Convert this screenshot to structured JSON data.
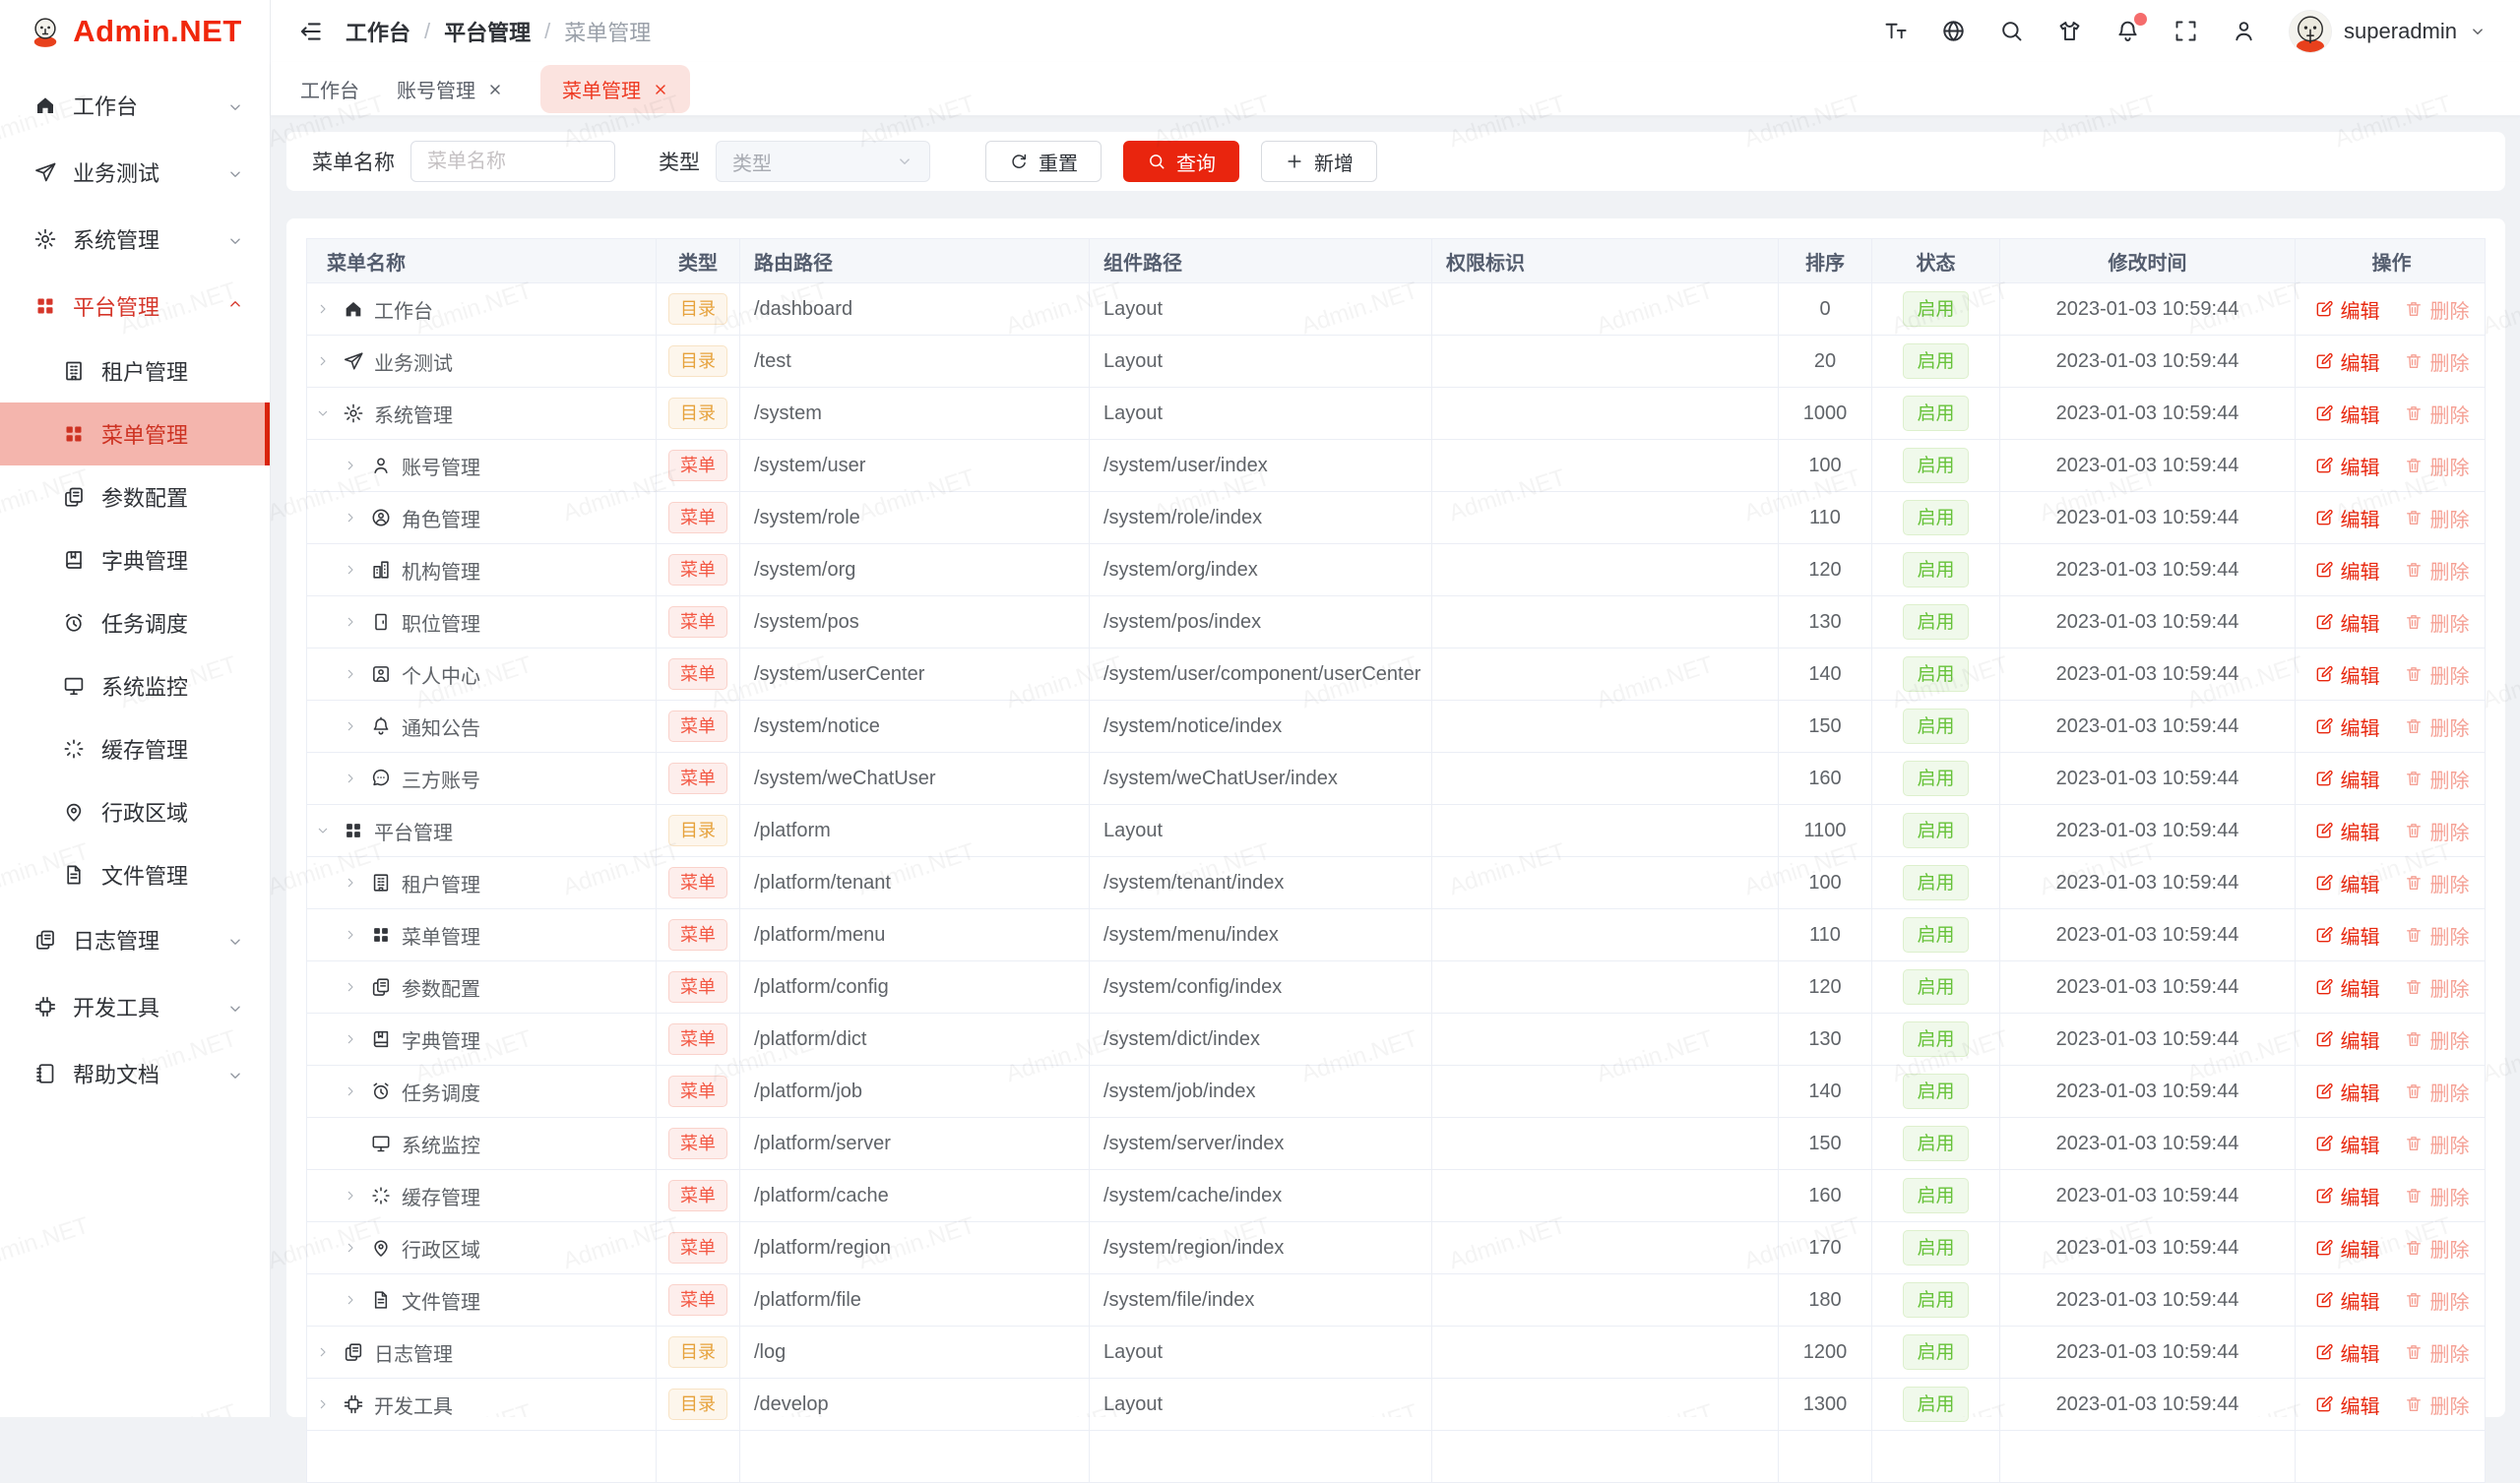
{
  "colors": {
    "primary": "#e9250e",
    "logo_red": "#f0270b",
    "sidebar_active_bg": "#f4b5ad",
    "tag_dir": "#e6a23c",
    "tag_menu": "#f35844",
    "tag_status": "#67c23a",
    "edit_link": "#e8270e",
    "delete_link": "#f5a094",
    "tab_active_bg": "#fbe3df"
  },
  "watermark": {
    "text": "Admin.NET"
  },
  "sidebar": {
    "logo_text": "Admin.NET",
    "items": [
      {
        "key": "workbench",
        "label": "工作台",
        "icon": "home",
        "chevron": "down"
      },
      {
        "key": "business-test",
        "label": "业务测试",
        "icon": "send",
        "chevron": "down"
      },
      {
        "key": "system-mgmt",
        "label": "系统管理",
        "icon": "gear",
        "chevron": "down"
      },
      {
        "key": "platform-mgmt",
        "label": "平台管理",
        "icon": "grid",
        "chevron": "up",
        "expanded": true,
        "red": true,
        "children": [
          {
            "key": "tenant-mgmt",
            "label": "租户管理",
            "icon": "building"
          },
          {
            "key": "menu-mgmt",
            "label": "菜单管理",
            "icon": "grid",
            "active": true
          },
          {
            "key": "param-config",
            "label": "参数配置",
            "icon": "copy"
          },
          {
            "key": "dict-mgmt",
            "label": "字典管理",
            "icon": "book"
          },
          {
            "key": "job-schedule",
            "label": "任务调度",
            "icon": "clock"
          },
          {
            "key": "system-monitor",
            "label": "系统监控",
            "icon": "monitor"
          },
          {
            "key": "cache-mgmt",
            "label": "缓存管理",
            "icon": "spinner"
          },
          {
            "key": "region-mgmt",
            "label": "行政区域",
            "icon": "pin"
          },
          {
            "key": "file-mgmt",
            "label": "文件管理",
            "icon": "file"
          }
        ]
      },
      {
        "key": "log-mgmt",
        "label": "日志管理",
        "icon": "log",
        "chevron": "down"
      },
      {
        "key": "dev-tools",
        "label": "开发工具",
        "icon": "chip",
        "chevron": "down"
      },
      {
        "key": "help-docs",
        "label": "帮助文档",
        "icon": "notebook",
        "chevron": "down"
      }
    ]
  },
  "topbar": {
    "breadcrumb": [
      "工作台",
      "平台管理",
      "菜单管理"
    ],
    "icons": [
      {
        "key": "font-size"
      },
      {
        "key": "language"
      },
      {
        "key": "search"
      },
      {
        "key": "theme"
      },
      {
        "key": "notification",
        "dot": true
      },
      {
        "key": "fullscreen"
      },
      {
        "key": "user"
      }
    ],
    "username": "superadmin"
  },
  "tabs": [
    {
      "key": "workbench",
      "label": "工作台",
      "closable": false,
      "active": false
    },
    {
      "key": "account-mgmt",
      "label": "账号管理",
      "closable": true,
      "active": false
    },
    {
      "key": "menu-mgmt",
      "label": "菜单管理",
      "closable": true,
      "active": true
    }
  ],
  "filter": {
    "name_label": "菜单名称",
    "name_value": "",
    "name_placeholder": "菜单名称",
    "type_label": "类型",
    "type_placeholder": "类型",
    "reset_label": "重置",
    "search_label": "查询",
    "add_label": "新增"
  },
  "table": {
    "columns": [
      "菜单名称",
      "类型",
      "路由路径",
      "组件路径",
      "权限标识",
      "排序",
      "状态",
      "修改时间",
      "操作"
    ],
    "type_dir": "目录",
    "type_menu": "菜单",
    "edit_label": "编辑",
    "delete_label": "删除",
    "rows": [
      {
        "key": "workbench",
        "level": 0,
        "caret": "right",
        "icon": "home",
        "name": "工作台",
        "type": "dir",
        "route": "/dashboard",
        "component": "Layout",
        "permission": "",
        "sort": "0",
        "status": "启用",
        "time": "2023-01-03 10:59:44"
      },
      {
        "key": "business-test",
        "level": 0,
        "caret": "right",
        "icon": "send",
        "name": "业务测试",
        "type": "dir",
        "route": "/test",
        "component": "Layout",
        "permission": "",
        "sort": "20",
        "status": "启用",
        "time": "2023-01-03 10:59:44"
      },
      {
        "key": "system-mgmt",
        "level": 0,
        "caret": "down",
        "icon": "gear",
        "name": "系统管理",
        "type": "dir",
        "route": "/system",
        "component": "Layout",
        "permission": "",
        "sort": "1000",
        "status": "启用",
        "time": "2023-01-03 10:59:44"
      },
      {
        "key": "account-mgmt",
        "level": 1,
        "caret": "right",
        "icon": "user",
        "name": "账号管理",
        "type": "menu",
        "route": "/system/user",
        "component": "/system/user/index",
        "permission": "",
        "sort": "100",
        "status": "启用",
        "time": "2023-01-03 10:59:44"
      },
      {
        "key": "role-mgmt",
        "level": 1,
        "caret": "right",
        "icon": "role",
        "name": "角色管理",
        "type": "menu",
        "route": "/system/role",
        "component": "/system/role/index",
        "permission": "",
        "sort": "110",
        "status": "启用",
        "time": "2023-01-03 10:59:44"
      },
      {
        "key": "org-mgmt",
        "level": 1,
        "caret": "right",
        "icon": "org",
        "name": "机构管理",
        "type": "menu",
        "route": "/system/org",
        "component": "/system/org/index",
        "permission": "",
        "sort": "120",
        "status": "启用",
        "time": "2023-01-03 10:59:44"
      },
      {
        "key": "pos-mgmt",
        "level": 1,
        "caret": "right",
        "icon": "pos",
        "name": "职位管理",
        "type": "menu",
        "route": "/system/pos",
        "component": "/system/pos/index",
        "permission": "",
        "sort": "130",
        "status": "启用",
        "time": "2023-01-03 10:59:44"
      },
      {
        "key": "user-center",
        "level": 1,
        "caret": "right",
        "icon": "usercenter",
        "name": "个人中心",
        "type": "menu",
        "route": "/system/userCenter",
        "component": "/system/user/component/userCenter",
        "permission": "",
        "sort": "140",
        "status": "启用",
        "time": "2023-01-03 10:59:44"
      },
      {
        "key": "notice",
        "level": 1,
        "caret": "right",
        "icon": "bell",
        "name": "通知公告",
        "type": "menu",
        "route": "/system/notice",
        "component": "/system/notice/index",
        "permission": "",
        "sort": "150",
        "status": "启用",
        "time": "2023-01-03 10:59:44"
      },
      {
        "key": "third-party-account",
        "level": 1,
        "caret": "right",
        "icon": "chat",
        "name": "三方账号",
        "type": "menu",
        "route": "/system/weChatUser",
        "component": "/system/weChatUser/index",
        "permission": "",
        "sort": "160",
        "status": "启用",
        "time": "2023-01-03 10:59:44"
      },
      {
        "key": "platform-mgmt",
        "level": 0,
        "caret": "down",
        "icon": "grid",
        "name": "平台管理",
        "type": "dir",
        "route": "/platform",
        "component": "Layout",
        "permission": "",
        "sort": "1100",
        "status": "启用",
        "time": "2023-01-03 10:59:44"
      },
      {
        "key": "tenant-mgmt",
        "level": 1,
        "caret": "right",
        "icon": "building",
        "name": "租户管理",
        "type": "menu",
        "route": "/platform/tenant",
        "component": "/system/tenant/index",
        "permission": "",
        "sort": "100",
        "status": "启用",
        "time": "2023-01-03 10:59:44"
      },
      {
        "key": "menu-mgmt",
        "level": 1,
        "caret": "right",
        "icon": "grid",
        "name": "菜单管理",
        "type": "menu",
        "route": "/platform/menu",
        "component": "/system/menu/index",
        "permission": "",
        "sort": "110",
        "status": "启用",
        "time": "2023-01-03 10:59:44"
      },
      {
        "key": "param-config",
        "level": 1,
        "caret": "right",
        "icon": "copy",
        "name": "参数配置",
        "type": "menu",
        "route": "/platform/config",
        "component": "/system/config/index",
        "permission": "",
        "sort": "120",
        "status": "启用",
        "time": "2023-01-03 10:59:44"
      },
      {
        "key": "dict-mgmt",
        "level": 1,
        "caret": "right",
        "icon": "book",
        "name": "字典管理",
        "type": "menu",
        "route": "/platform/dict",
        "component": "/system/dict/index",
        "permission": "",
        "sort": "130",
        "status": "启用",
        "time": "2023-01-03 10:59:44"
      },
      {
        "key": "job-schedule",
        "level": 1,
        "caret": "right",
        "icon": "clock",
        "name": "任务调度",
        "type": "menu",
        "route": "/platform/job",
        "component": "/system/job/index",
        "permission": "",
        "sort": "140",
        "status": "启用",
        "time": "2023-01-03 10:59:44"
      },
      {
        "key": "system-monitor",
        "level": 1,
        "caret": "none",
        "icon": "monitor",
        "name": "系统监控",
        "type": "menu",
        "route": "/platform/server",
        "component": "/system/server/index",
        "permission": "",
        "sort": "150",
        "status": "启用",
        "time": "2023-01-03 10:59:44"
      },
      {
        "key": "cache-mgmt",
        "level": 1,
        "caret": "right",
        "icon": "spinner",
        "name": "缓存管理",
        "type": "menu",
        "route": "/platform/cache",
        "component": "/system/cache/index",
        "permission": "",
        "sort": "160",
        "status": "启用",
        "time": "2023-01-03 10:59:44"
      },
      {
        "key": "region-mgmt",
        "level": 1,
        "caret": "right",
        "icon": "pin",
        "name": "行政区域",
        "type": "menu",
        "route": "/platform/region",
        "component": "/system/region/index",
        "permission": "",
        "sort": "170",
        "status": "启用",
        "time": "2023-01-03 10:59:44"
      },
      {
        "key": "file-mgmt",
        "level": 1,
        "caret": "right",
        "icon": "file",
        "name": "文件管理",
        "type": "menu",
        "route": "/platform/file",
        "component": "/system/file/index",
        "permission": "",
        "sort": "180",
        "status": "启用",
        "time": "2023-01-03 10:59:44"
      },
      {
        "key": "log-mgmt",
        "level": 0,
        "caret": "right",
        "icon": "log",
        "name": "日志管理",
        "type": "dir",
        "route": "/log",
        "component": "Layout",
        "permission": "",
        "sort": "1200",
        "status": "启用",
        "time": "2023-01-03 10:59:44"
      },
      {
        "key": "dev-tools",
        "level": 0,
        "caret": "right",
        "icon": "chip",
        "name": "开发工具",
        "type": "dir",
        "route": "/develop",
        "component": "Layout",
        "permission": "",
        "sort": "1300",
        "status": "启用",
        "time": "2023-01-03 10:59:44"
      }
    ]
  }
}
